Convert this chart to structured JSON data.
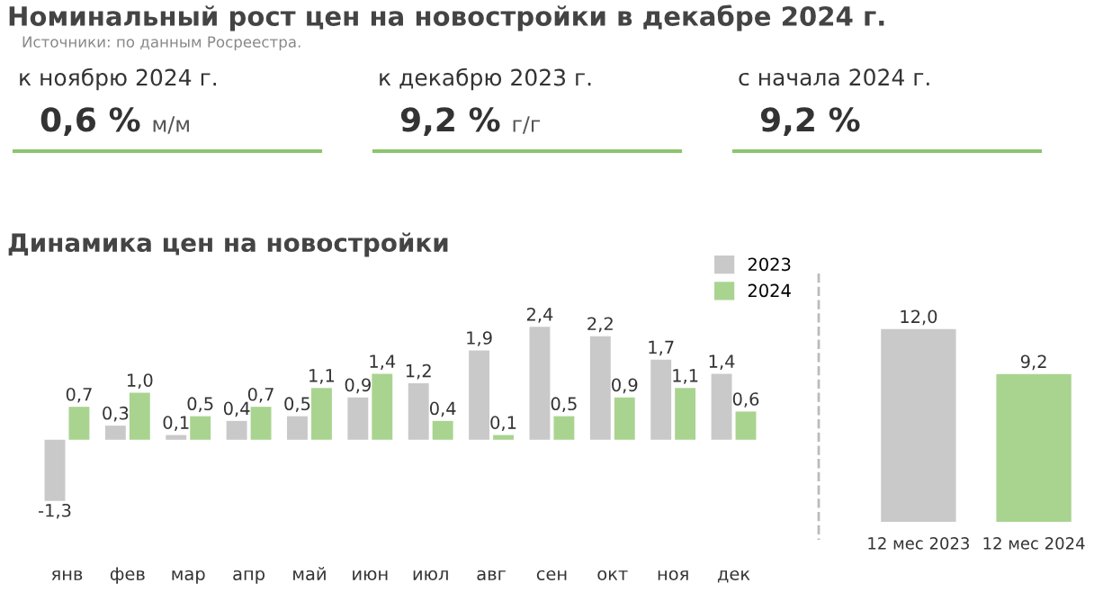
{
  "chart_data": [
    {
      "type": "other",
      "title": "Номинальный рост цен на новостройки в декабре 2024 г.",
      "subtitle": "Источники: по данным Росреестра.",
      "categories": [
        "к ноябрю 2024 г.",
        "к декабрю 2023 г.",
        "с начала 2024 г."
      ],
      "value_labels": [
        "0,6 %",
        "9,2 %",
        "9,2 %"
      ],
      "annotations": [
        "м/м",
        "г/г"
      ],
      "color": "#8cc56e"
    },
    {
      "type": "bar",
      "title": "Динамика цен на новостройки",
      "categories": [
        "янв",
        "фев",
        "мар",
        "апр",
        "май",
        "июн",
        "июл",
        "авг",
        "сен",
        "окт",
        "ноя",
        "дек"
      ],
      "legend": "top right",
      "series": [
        {
          "name": "2023",
          "color": "#c9c9c9",
          "values": [
            -1.3,
            0.3,
            0.1,
            0.4,
            0.5,
            0.9,
            1.2,
            1.9,
            2.4,
            2.2,
            1.7,
            1.4
          ],
          "value_labels": [
            "-1,3",
            "0,3",
            "0,1",
            "0,4",
            "0,5",
            "0,9",
            "1,2",
            "1,9",
            "2,4",
            "2,2",
            "1,7",
            "1,4"
          ]
        },
        {
          "name": "2024",
          "color": "#a9d490",
          "values": [
            0.7,
            1.0,
            0.5,
            0.7,
            1.1,
            1.4,
            0.4,
            0.1,
            0.5,
            0.9,
            1.1,
            0.6
          ],
          "value_labels": [
            "0,7",
            "1,0",
            "0,5",
            "0,7",
            "1,1",
            "1,4",
            "0,4",
            "0,1",
            "0,5",
            "0,9",
            "1,1",
            "0,6"
          ]
        }
      ]
    },
    {
      "type": "bar",
      "categories": [
        "12 мес 2023",
        "12 мес 2024"
      ],
      "values": [
        12.0,
        9.2
      ],
      "colors": [
        "#c9c9c9",
        "#a9d490"
      ],
      "value_labels": [
        "12,0",
        "9,2"
      ]
    }
  ]
}
